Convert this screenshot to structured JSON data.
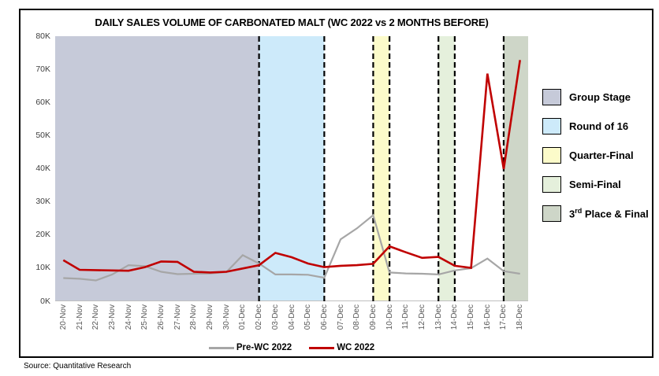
{
  "title": "DAILY SALES VOLUME OF CARBONATED MALT (WC 2022 vs 2 MONTHS BEFORE)",
  "source": "Source: Quantitative Research",
  "series_legend": {
    "pre_label": "Pre-WC 2022",
    "wc_label": "WC 2022"
  },
  "stage_legend": {
    "items": [
      {
        "label": "Group Stage",
        "color": "#c6cad9"
      },
      {
        "label": "Round of 16",
        "color": "#cdeafa"
      },
      {
        "label": "Quarter-Final",
        "color": "#fcfbca"
      },
      {
        "label": "Semi-Final",
        "color": "#e5f0dc"
      },
      {
        "label": "3rd Place & Final",
        "color": "#ced6c8"
      }
    ]
  },
  "chart_data": {
    "type": "line",
    "title": "DAILY SALES VOLUME OF CARBONATED MALT (WC 2022 vs 2 MONTHS BEFORE)",
    "xlabel": "",
    "ylabel": "",
    "y_unit": "K",
    "ylim": [
      0,
      80
    ],
    "y_ticks": [
      "0K",
      "10K",
      "20K",
      "30K",
      "40K",
      "50K",
      "60K",
      "70K",
      "80K"
    ],
    "grid": false,
    "legend_position": "bottom",
    "categories": [
      "20-Nov",
      "21-Nov",
      "22-Nov",
      "23-Nov",
      "24-Nov",
      "25-Nov",
      "26-Nov",
      "27-Nov",
      "28-Nov",
      "29-Nov",
      "30-Nov",
      "01-Dec",
      "02-Dec",
      "03-Dec",
      "04-Dec",
      "05-Dec",
      "06-Dec",
      "07-Dec",
      "08-Dec",
      "09-Dec",
      "10-Dec",
      "11-Dec",
      "12-Dec",
      "13-Dec",
      "14-Dec",
      "15-Dec",
      "16-Dec",
      "17-Dec",
      "18-Dec"
    ],
    "series": [
      {
        "name": "Pre-WC 2022",
        "color": "#a6a6a6",
        "values_thousands": [
          7.0,
          6.8,
          6.3,
          8.1,
          10.9,
          10.6,
          8.9,
          8.2,
          8.3,
          8.4,
          8.8,
          13.9,
          11.4,
          8.1,
          8.1,
          8.0,
          7.1,
          18.7,
          22.0,
          26.0,
          8.7,
          8.4,
          8.3,
          8.1,
          9.3,
          10.0,
          12.9,
          9.1,
          8.3
        ]
      },
      {
        "name": "WC 2022",
        "color": "#c00000",
        "values_thousands": [
          12.4,
          9.5,
          9.4,
          9.3,
          9.2,
          10.3,
          12.0,
          11.9,
          8.9,
          8.7,
          8.9,
          9.9,
          10.9,
          14.6,
          13.3,
          11.4,
          10.3,
          10.7,
          10.9,
          11.3,
          16.6,
          14.8,
          13.1,
          13.4,
          10.7,
          10.1,
          68.7,
          39.9,
          72.8
        ]
      }
    ],
    "stage_bands": [
      {
        "label": "Group Stage",
        "color": "#c6cad9",
        "from": "edge",
        "to": "02-Dec"
      },
      {
        "label": "Round of 16",
        "color": "#cdeafa",
        "from": "02-Dec",
        "to": "06-Dec"
      },
      {
        "label": "Quarter-Final",
        "color": "#fcfbca",
        "from": "09-Dec",
        "to": "10-Dec"
      },
      {
        "label": "Semi-Final",
        "color": "#e5f0dc",
        "from": "13-Dec",
        "to": "14-Dec"
      },
      {
        "label": "3rd Place & Final",
        "color": "#ced6c8",
        "from": "17-Dec",
        "to": "edge"
      }
    ],
    "dashed_boundaries": [
      "02-Dec",
      "06-Dec",
      "09-Dec",
      "10-Dec",
      "13-Dec",
      "14-Dec",
      "17-Dec"
    ],
    "axis_line_color": "#bfbfbf"
  }
}
